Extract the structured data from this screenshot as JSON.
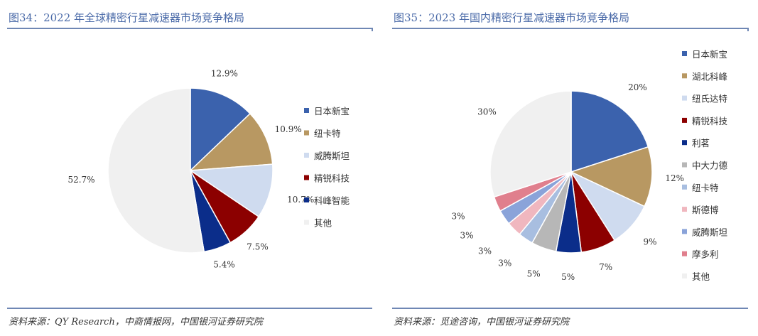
{
  "left": {
    "title": "图34：2022 年全球精密行星减速器市场竞争格局",
    "source": "资料来源：QY Research，中商情报网，中国银河证券研究院"
  },
  "right": {
    "title": "图35：2023 年国内精密行星减速器市场竞争格局",
    "source": "资料来源：觅途咨询，中国银河证券研究院"
  },
  "chart_data": [
    {
      "type": "pie",
      "title": "",
      "labels": [
        "日本新宝",
        "纽卡特",
        "威腾斯坦",
        "精锐科技",
        "科峰智能",
        "其他"
      ],
      "values": [
        12.9,
        10.9,
        10.7,
        7.5,
        5.4,
        52.7
      ],
      "value_labels": [
        "12.9%",
        "10.9%",
        "10.7%",
        "7.5%",
        "5.4%",
        "52.7%"
      ],
      "colors": [
        "#3b62ad",
        "#b89862",
        "#cfdbef",
        "#8c0000",
        "#0b2d8a",
        "#f0f0f0"
      ],
      "legend": "right"
    },
    {
      "type": "pie",
      "title": "",
      "labels": [
        "日本新宝",
        "湖北科峰",
        "纽氏达特",
        "精锐科技",
        "利茗",
        "中大力德",
        "纽卡特",
        "斯德博",
        "威腾斯坦",
        "摩多利",
        "其他"
      ],
      "values": [
        20,
        12,
        9,
        7,
        5,
        5,
        3,
        3,
        3,
        3,
        30
      ],
      "value_labels": [
        "20%",
        "12%",
        "9%",
        "7%",
        "5%",
        "5%",
        "3%",
        "3%",
        "3%",
        "3%",
        "30%"
      ],
      "colors": [
        "#3b62ad",
        "#b89862",
        "#cfdbef",
        "#8c0000",
        "#0b2d8a",
        "#b7b7b7",
        "#a8bee0",
        "#f0b7bf",
        "#8aa3d9",
        "#e07f8d",
        "#f0f0f0"
      ],
      "legend": "right"
    }
  ]
}
